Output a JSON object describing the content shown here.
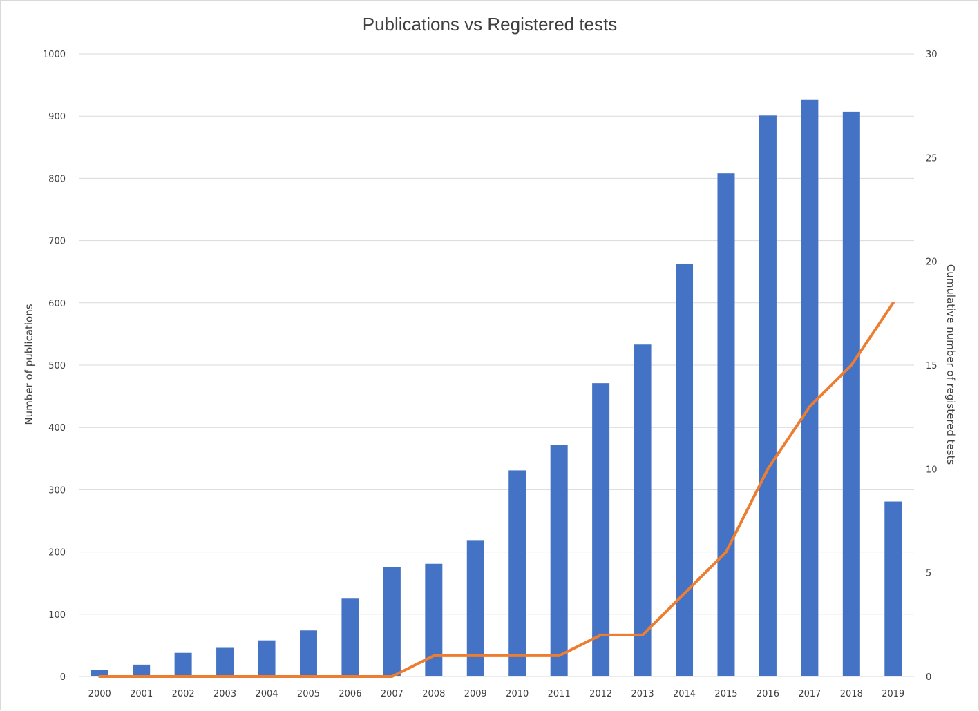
{
  "chart_data": {
    "type": "bar",
    "title": "Publications vs Registered tests",
    "categories": [
      "2000",
      "2001",
      "2002",
      "2003",
      "2004",
      "2005",
      "2006",
      "2007",
      "2008",
      "2009",
      "2010",
      "2011",
      "2012",
      "2013",
      "2014",
      "2015",
      "2016",
      "2017",
      "2018",
      "2019"
    ],
    "series": [
      {
        "type": "bar",
        "axis": "left",
        "color": "#4472c4",
        "values": [
          11,
          19,
          38,
          46,
          58,
          74,
          125,
          176,
          181,
          218,
          331,
          372,
          471,
          533,
          663,
          808,
          901,
          926,
          907,
          281
        ]
      },
      {
        "type": "line",
        "axis": "right",
        "color": "#ed7d31",
        "values": [
          0,
          0,
          0,
          0,
          0,
          0,
          0,
          0,
          1,
          1,
          1,
          1,
          2,
          2,
          4,
          6,
          10,
          13,
          15,
          18
        ]
      }
    ],
    "ylabel": "Number of publications",
    "ylim": [
      0,
      1000
    ],
    "yticks": [
      "0",
      "100",
      "200",
      "300",
      "400",
      "500",
      "600",
      "700",
      "800",
      "900",
      "1000"
    ],
    "y2label": "Cumulative number of registered tests",
    "y2lim": [
      0,
      30
    ],
    "y2ticks": [
      "0",
      "5",
      "10",
      "15",
      "20",
      "25",
      "30"
    ],
    "grid": true,
    "legend": "none"
  }
}
